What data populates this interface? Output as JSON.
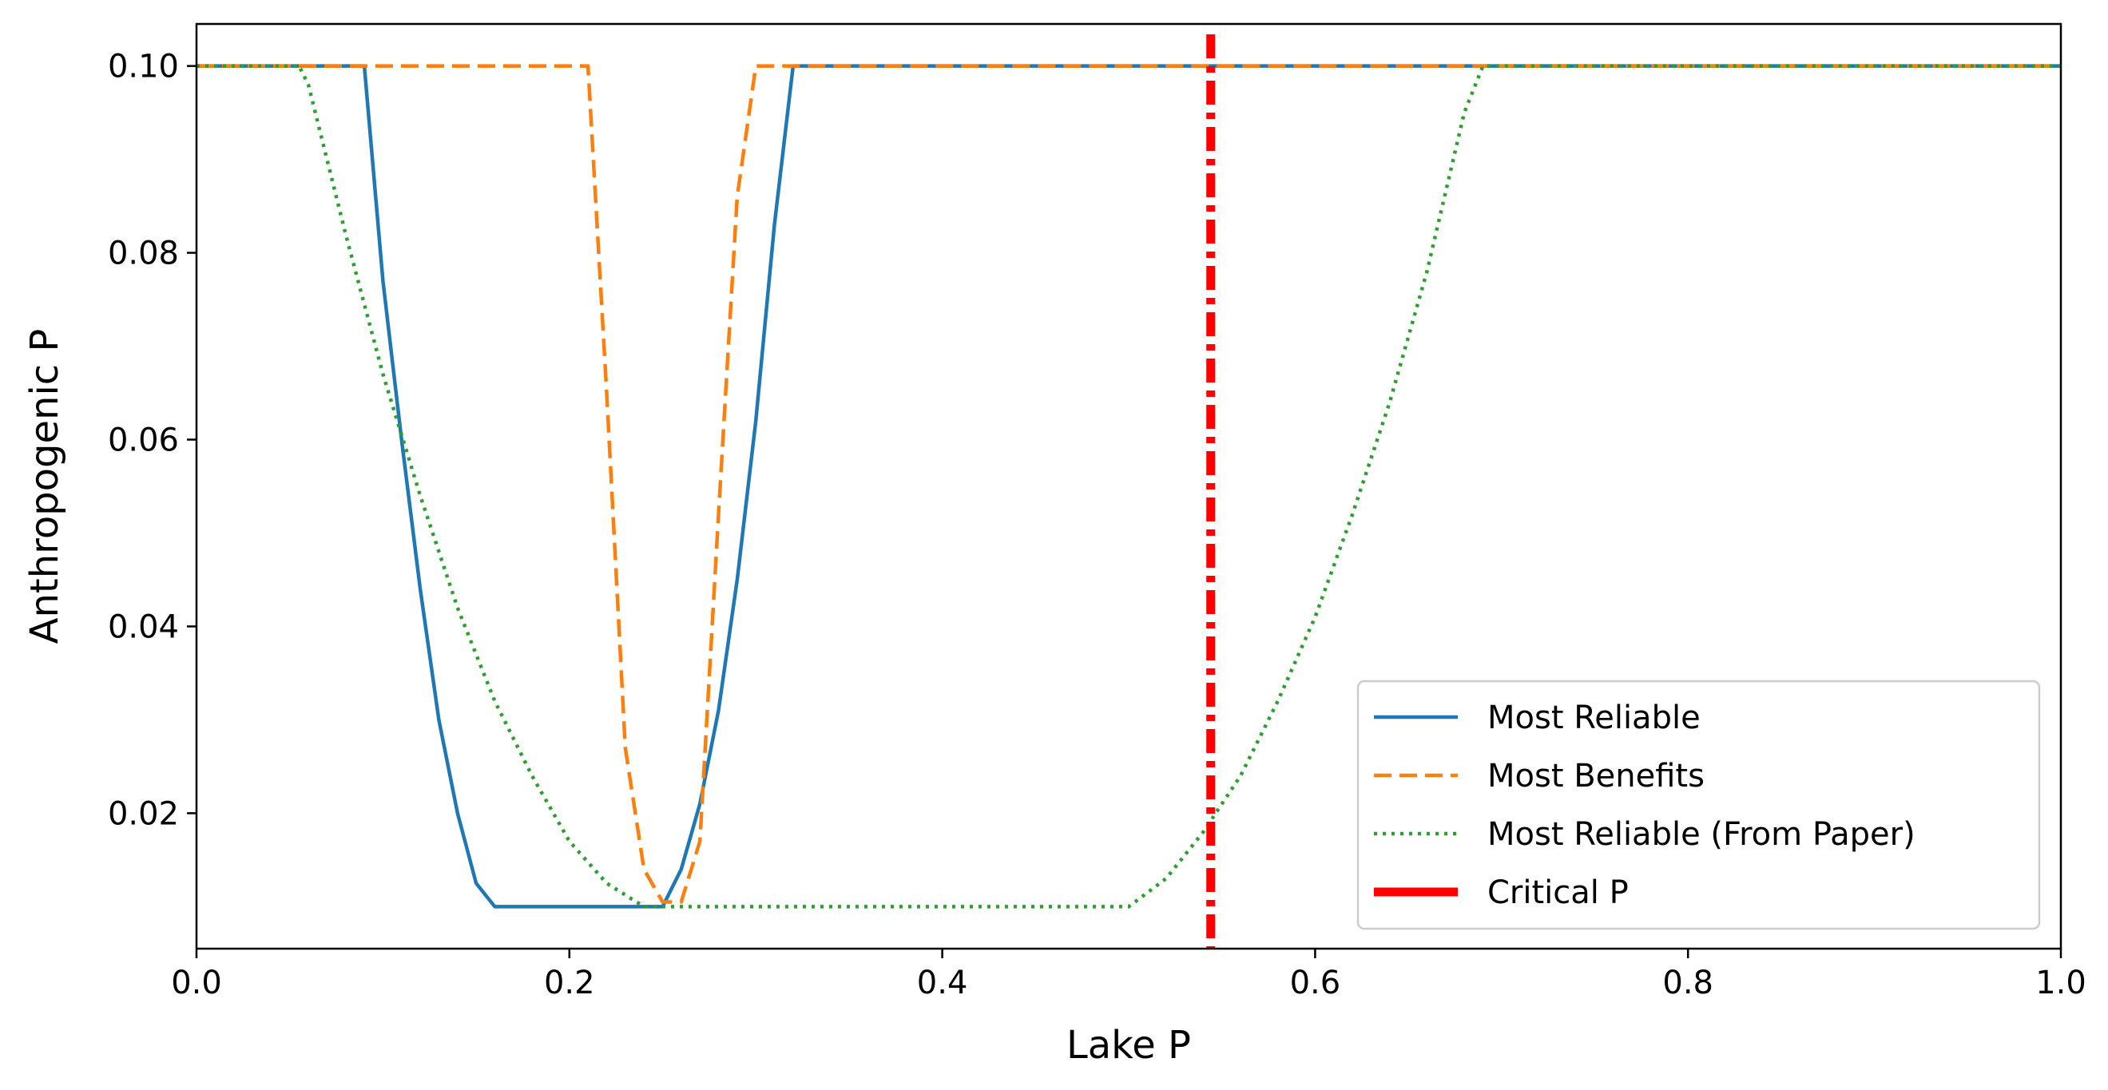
{
  "chart_data": {
    "type": "line",
    "xlabel": "Lake P",
    "ylabel": "Anthropogenic P",
    "xlim": [
      0.0,
      1.0
    ],
    "ylim": [
      0.0055,
      0.1045
    ],
    "x_ticks": [
      "0.0",
      "0.2",
      "0.4",
      "0.6",
      "0.8",
      "1.0"
    ],
    "x_tick_values": [
      0.0,
      0.2,
      0.4,
      0.6,
      0.8,
      1.0
    ],
    "y_ticks": [
      "0.02",
      "0.04",
      "0.06",
      "0.08",
      "0.10"
    ],
    "y_tick_values": [
      0.02,
      0.04,
      0.06,
      0.08,
      0.1
    ],
    "grid": false,
    "legend_position": "lower right",
    "series": [
      {
        "name": "Most Reliable",
        "color": "#1f77b4",
        "style": "solid",
        "x": [
          0.0,
          0.09,
          0.1,
          0.11,
          0.12,
          0.13,
          0.14,
          0.15,
          0.16,
          0.25,
          0.26,
          0.27,
          0.28,
          0.29,
          0.3,
          0.31,
          0.32,
          1.0
        ],
        "y": [
          0.1,
          0.1,
          0.077,
          0.06,
          0.044,
          0.03,
          0.02,
          0.0125,
          0.01,
          0.01,
          0.014,
          0.021,
          0.031,
          0.045,
          0.062,
          0.083,
          0.1,
          0.1
        ]
      },
      {
        "name": "Most Benefits",
        "color": "#ff7f0e",
        "style": "dashed",
        "x": [
          0.0,
          0.21,
          0.22,
          0.23,
          0.24,
          0.25,
          0.26,
          0.27,
          0.28,
          0.29,
          0.3,
          1.0
        ],
        "y": [
          0.1,
          0.1,
          0.065,
          0.027,
          0.014,
          0.0105,
          0.0105,
          0.017,
          0.052,
          0.086,
          0.1,
          0.1
        ]
      },
      {
        "name": "Most Reliable (From Paper)",
        "color": "#2ca02c",
        "style": "dotted",
        "x": [
          0.0,
          0.055,
          0.06,
          0.08,
          0.1,
          0.12,
          0.14,
          0.16,
          0.18,
          0.2,
          0.22,
          0.24,
          0.5,
          0.52,
          0.54,
          0.56,
          0.58,
          0.6,
          0.62,
          0.64,
          0.66,
          0.68,
          0.69,
          1.0
        ],
        "y": [
          0.1,
          0.1,
          0.098,
          0.082,
          0.067,
          0.054,
          0.042,
          0.032,
          0.024,
          0.017,
          0.0125,
          0.01,
          0.01,
          0.013,
          0.018,
          0.024,
          0.032,
          0.041,
          0.052,
          0.064,
          0.078,
          0.095,
          0.1,
          0.1
        ]
      },
      {
        "name": "Critical P",
        "color": "#ff0000",
        "style": "dashdot",
        "type": "vline",
        "x": 0.544
      }
    ]
  }
}
